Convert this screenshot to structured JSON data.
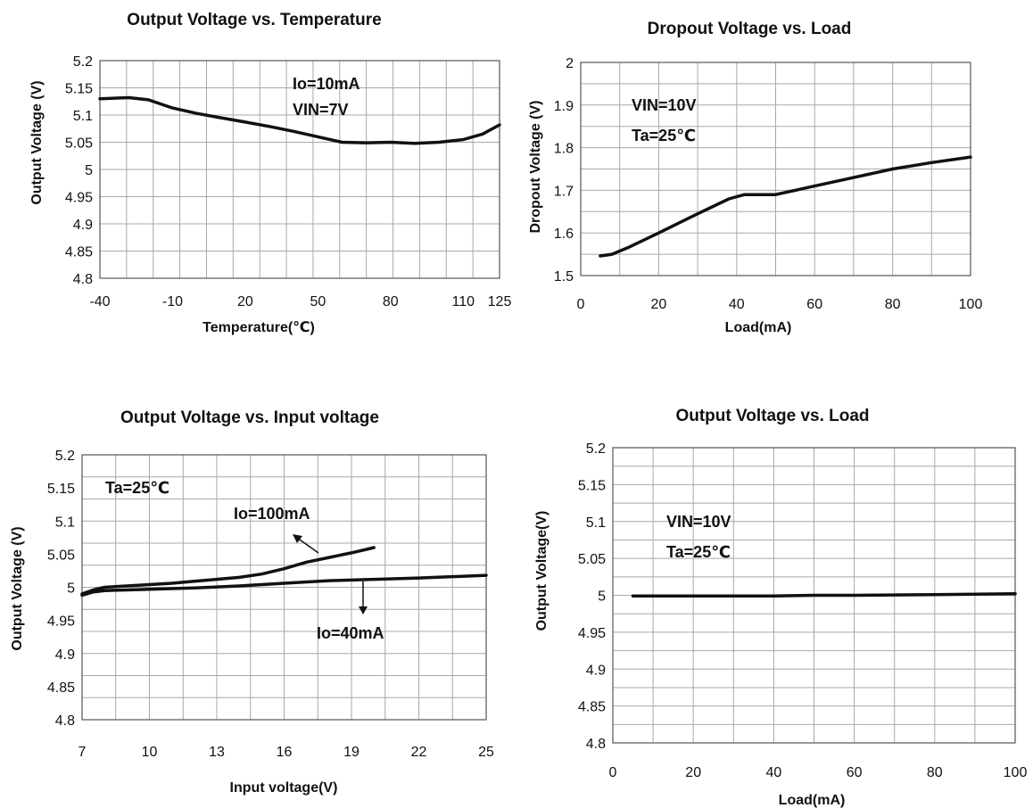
{
  "chart_data": [
    {
      "type": "line",
      "title": "Output Voltage vs. Temperature",
      "xlabel": "Temperature(℃)",
      "ylabel": "Output Voltage (V)",
      "xticks": [
        "-40",
        "-10",
        "20",
        "50",
        "80",
        "110",
        "125"
      ],
      "xlim": [
        -40,
        125
      ],
      "ylim": [
        4.8,
        5.2
      ],
      "yticks": [
        "5.2",
        "5.15",
        "5.1",
        "5.05",
        "5",
        "4.95",
        "4.9",
        "4.85",
        "4.8"
      ],
      "grid": true,
      "annotations": [
        "Io=10mA",
        "VIN=7V"
      ],
      "series": [
        {
          "x": [
            -40,
            -28,
            -20,
            -10,
            0,
            10,
            20,
            30,
            40,
            50,
            60,
            70,
            80,
            90,
            100,
            110,
            118,
            125
          ],
          "y": [
            5.13,
            5.132,
            5.128,
            5.113,
            5.103,
            5.095,
            5.087,
            5.079,
            5.07,
            5.06,
            5.05,
            5.049,
            5.05,
            5.048,
            5.05,
            5.055,
            5.065,
            5.082
          ]
        }
      ]
    },
    {
      "type": "line",
      "title": "Dropout Voltage vs. Load",
      "xlabel": "Load(mA)",
      "ylabel": "Dropout Voltage (V)",
      "xticks": [
        "0",
        "20",
        "40",
        "60",
        "80",
        "100"
      ],
      "xlim": [
        0,
        100
      ],
      "ylim": [
        1.5,
        2.0
      ],
      "yticks": [
        "2",
        "1.9",
        "1.8",
        "1.7",
        "1.6",
        "1.5"
      ],
      "grid": true,
      "annotations": [
        "VIN=10V",
        "Ta=25℃"
      ],
      "series": [
        {
          "x": [
            5,
            8,
            12,
            20,
            30,
            38,
            42,
            46,
            50,
            55,
            60,
            70,
            80,
            90,
            100
          ],
          "y": [
            1.546,
            1.55,
            1.565,
            1.6,
            1.645,
            1.68,
            1.69,
            1.69,
            1.69,
            1.7,
            1.71,
            1.73,
            1.75,
            1.765,
            1.778
          ]
        }
      ]
    },
    {
      "type": "line",
      "title": "Output Voltage vs. Input voltage",
      "xlabel": "Input voltage(V)",
      "ylabel": "Output Voltage (V)",
      "xticks": [
        "7",
        "10",
        "13",
        "16",
        "19",
        "22",
        "25"
      ],
      "xlim": [
        7,
        25
      ],
      "ylim": [
        4.8,
        5.2
      ],
      "yticks": [
        "5.2",
        "5.15",
        "5.1",
        "5.05",
        "5",
        "4.95",
        "4.9",
        "4.85",
        "4.8"
      ],
      "grid": true,
      "annotations": [
        "Ta=25℃",
        "Io=100mA",
        "Io=40mA"
      ],
      "series": [
        {
          "name": "Io=100mA",
          "x": [
            7,
            7.5,
            8,
            9,
            10,
            11,
            12,
            13,
            14,
            15,
            16,
            17,
            18,
            19,
            20
          ],
          "y": [
            4.99,
            4.996,
            5.0,
            5.002,
            5.004,
            5.006,
            5.009,
            5.012,
            5.015,
            5.02,
            5.028,
            5.038,
            5.045,
            5.052,
            5.06
          ]
        },
        {
          "name": "Io=40mA",
          "x": [
            7,
            7.5,
            8,
            9,
            10,
            12,
            14,
            16,
            18,
            20,
            22,
            25
          ],
          "y": [
            4.988,
            4.993,
            4.995,
            4.996,
            4.997,
            4.999,
            5.002,
            5.006,
            5.01,
            5.012,
            5.014,
            5.018
          ]
        }
      ]
    },
    {
      "type": "line",
      "title": "Output Voltage vs. Load",
      "xlabel": "Load(mA)",
      "ylabel": "Output Voltage(V)",
      "xticks": [
        "0",
        "20",
        "40",
        "60",
        "80",
        "100"
      ],
      "xlim": [
        0,
        100
      ],
      "ylim": [
        4.8,
        5.2
      ],
      "yticks": [
        "5.2",
        "5.15",
        "5.1",
        "5.05",
        "5",
        "4.95",
        "4.9",
        "4.85",
        "4.8"
      ],
      "grid": true,
      "annotations": [
        "VIN=10V",
        "Ta=25℃"
      ],
      "series": [
        {
          "x": [
            5,
            20,
            40,
            50,
            60,
            80,
            100
          ],
          "y": [
            4.999,
            4.999,
            4.999,
            5.0,
            5.0,
            5.001,
            5.002
          ]
        }
      ]
    }
  ]
}
